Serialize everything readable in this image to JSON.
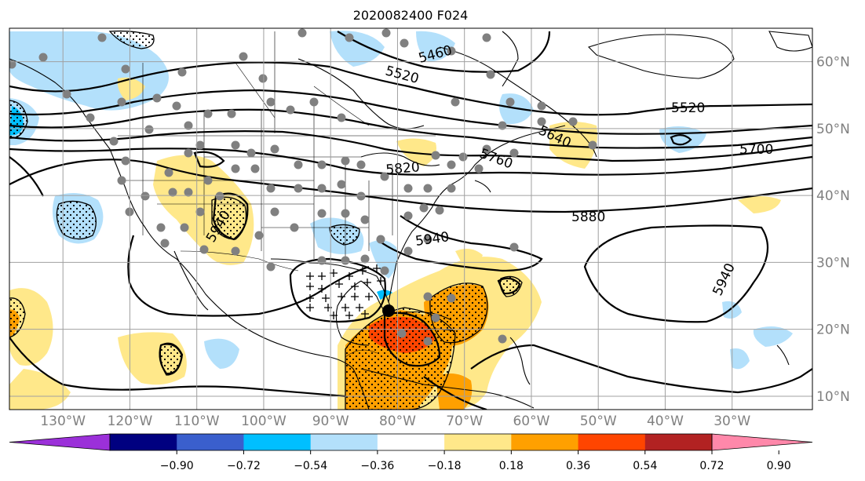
{
  "title": "2020082400 F024",
  "map": {
    "lon_labels": [
      "130°W",
      "120°W",
      "110°W",
      "100°W",
      "90°W",
      "80°W",
      "70°W",
      "60°W",
      "50°W",
      "40°W",
      "30°W"
    ],
    "lon_values": [
      -130,
      -120,
      -110,
      -100,
      -90,
      -80,
      -70,
      -60,
      -50,
      -40,
      -30
    ],
    "lat_labels": [
      "10°N",
      "20°N",
      "30°N",
      "40°N",
      "50°N",
      "60°N"
    ],
    "lat_values": [
      10,
      20,
      30,
      40,
      50,
      60
    ],
    "extent": {
      "lon": [
        -138,
        -18
      ],
      "lat": [
        8,
        65
      ]
    },
    "contour_labels": [
      "5460",
      "5520",
      "5520",
      "5640",
      "5700",
      "5760",
      "5820",
      "5880",
      "5940",
      "5940",
      "5940"
    ],
    "colors": {
      "light_blue": "#b3e0fb",
      "cyan_blue": "#00bfff",
      "yellow": "#ffe88a",
      "orange": "#ffa000",
      "red_orange": "#ff4500",
      "station_dot": "#808080"
    }
  },
  "colorbar": {
    "ticks": [
      "−0.90",
      "−0.72",
      "−0.54",
      "−0.36",
      "−0.18",
      "0.18",
      "0.36",
      "0.54",
      "0.72",
      "0.90"
    ],
    "colors": [
      "#9b30d9",
      "#000080",
      "#3a5fcd",
      "#00bfff",
      "#b3e0fb",
      "#ffffff",
      "#ffe88a",
      "#ffa000",
      "#ff4500",
      "#b22222",
      "#ff88aa"
    ]
  }
}
